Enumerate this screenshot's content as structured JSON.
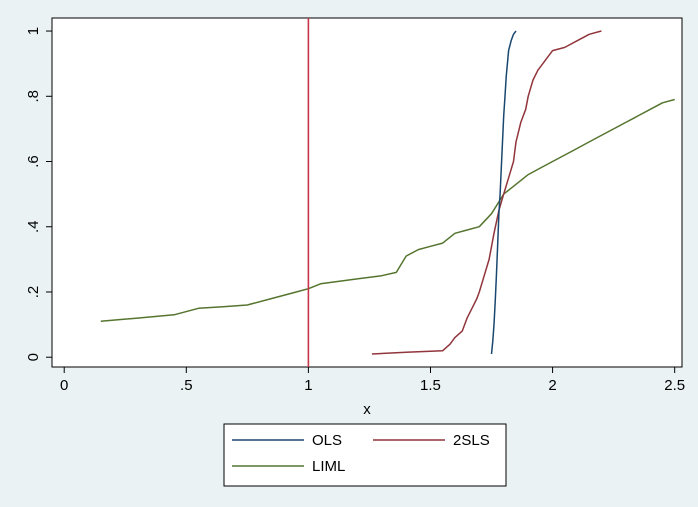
{
  "chart_data": {
    "type": "line",
    "title": "",
    "xlabel": "x",
    "ylabel": "",
    "xlim": [
      -0.05,
      2.53
    ],
    "ylim": [
      -0.03,
      1.04
    ],
    "x_ticks": [
      0,
      0.5,
      1,
      1.5,
      2,
      2.5
    ],
    "x_tick_labels": [
      "0",
      ".5",
      "1",
      "1.5",
      "2",
      "2.5"
    ],
    "y_ticks": [
      0,
      0.2,
      0.4,
      0.6,
      0.8,
      1
    ],
    "y_tick_labels": [
      "0",
      ".2",
      ".4",
      ".6",
      ".8",
      "1"
    ],
    "grid": false,
    "legend_position": "bottom",
    "vline": {
      "x": 1,
      "color": "#c6354a"
    },
    "series": [
      {
        "name": "OLS",
        "color": "#1a476f",
        "x": [
          1.75,
          1.755,
          1.76,
          1.765,
          1.77,
          1.775,
          1.78,
          1.785,
          1.79,
          1.795,
          1.8,
          1.805,
          1.81,
          1.815,
          1.82,
          1.83,
          1.84,
          1.85
        ],
        "y": [
          0.01,
          0.05,
          0.1,
          0.17,
          0.25,
          0.34,
          0.44,
          0.5,
          0.58,
          0.66,
          0.74,
          0.8,
          0.86,
          0.9,
          0.94,
          0.97,
          0.99,
          1.0
        ]
      },
      {
        "name": "2SLS",
        "color": "#90353b",
        "x": [
          1.26,
          1.4,
          1.55,
          1.58,
          1.6,
          1.63,
          1.65,
          1.67,
          1.69,
          1.7,
          1.72,
          1.74,
          1.76,
          1.78,
          1.8,
          1.82,
          1.84,
          1.85,
          1.87,
          1.89,
          1.9,
          1.92,
          1.94,
          1.96,
          1.98,
          1.99,
          2.0,
          2.05,
          2.1,
          2.15,
          2.2
        ],
        "y": [
          0.01,
          0.015,
          0.02,
          0.04,
          0.06,
          0.08,
          0.12,
          0.15,
          0.18,
          0.2,
          0.25,
          0.3,
          0.38,
          0.45,
          0.5,
          0.55,
          0.6,
          0.66,
          0.72,
          0.76,
          0.8,
          0.85,
          0.88,
          0.9,
          0.92,
          0.93,
          0.94,
          0.95,
          0.97,
          0.99,
          1.0
        ]
      },
      {
        "name": "LIML",
        "color": "#55752f",
        "x": [
          0.15,
          0.3,
          0.45,
          0.55,
          0.65,
          0.75,
          0.85,
          0.95,
          1.0,
          1.05,
          1.2,
          1.3,
          1.36,
          1.4,
          1.45,
          1.5,
          1.55,
          1.6,
          1.65,
          1.7,
          1.75,
          1.8,
          1.85,
          1.9,
          1.95,
          2.0,
          2.05,
          2.1,
          2.15,
          2.2,
          2.25,
          2.3,
          2.35,
          2.4,
          2.45,
          2.5
        ],
        "y": [
          0.11,
          0.12,
          0.13,
          0.15,
          0.155,
          0.16,
          0.18,
          0.2,
          0.21,
          0.225,
          0.24,
          0.25,
          0.26,
          0.31,
          0.33,
          0.34,
          0.35,
          0.38,
          0.39,
          0.4,
          0.44,
          0.5,
          0.53,
          0.56,
          0.58,
          0.6,
          0.62,
          0.64,
          0.66,
          0.68,
          0.7,
          0.72,
          0.74,
          0.76,
          0.78,
          0.79
        ]
      }
    ]
  }
}
